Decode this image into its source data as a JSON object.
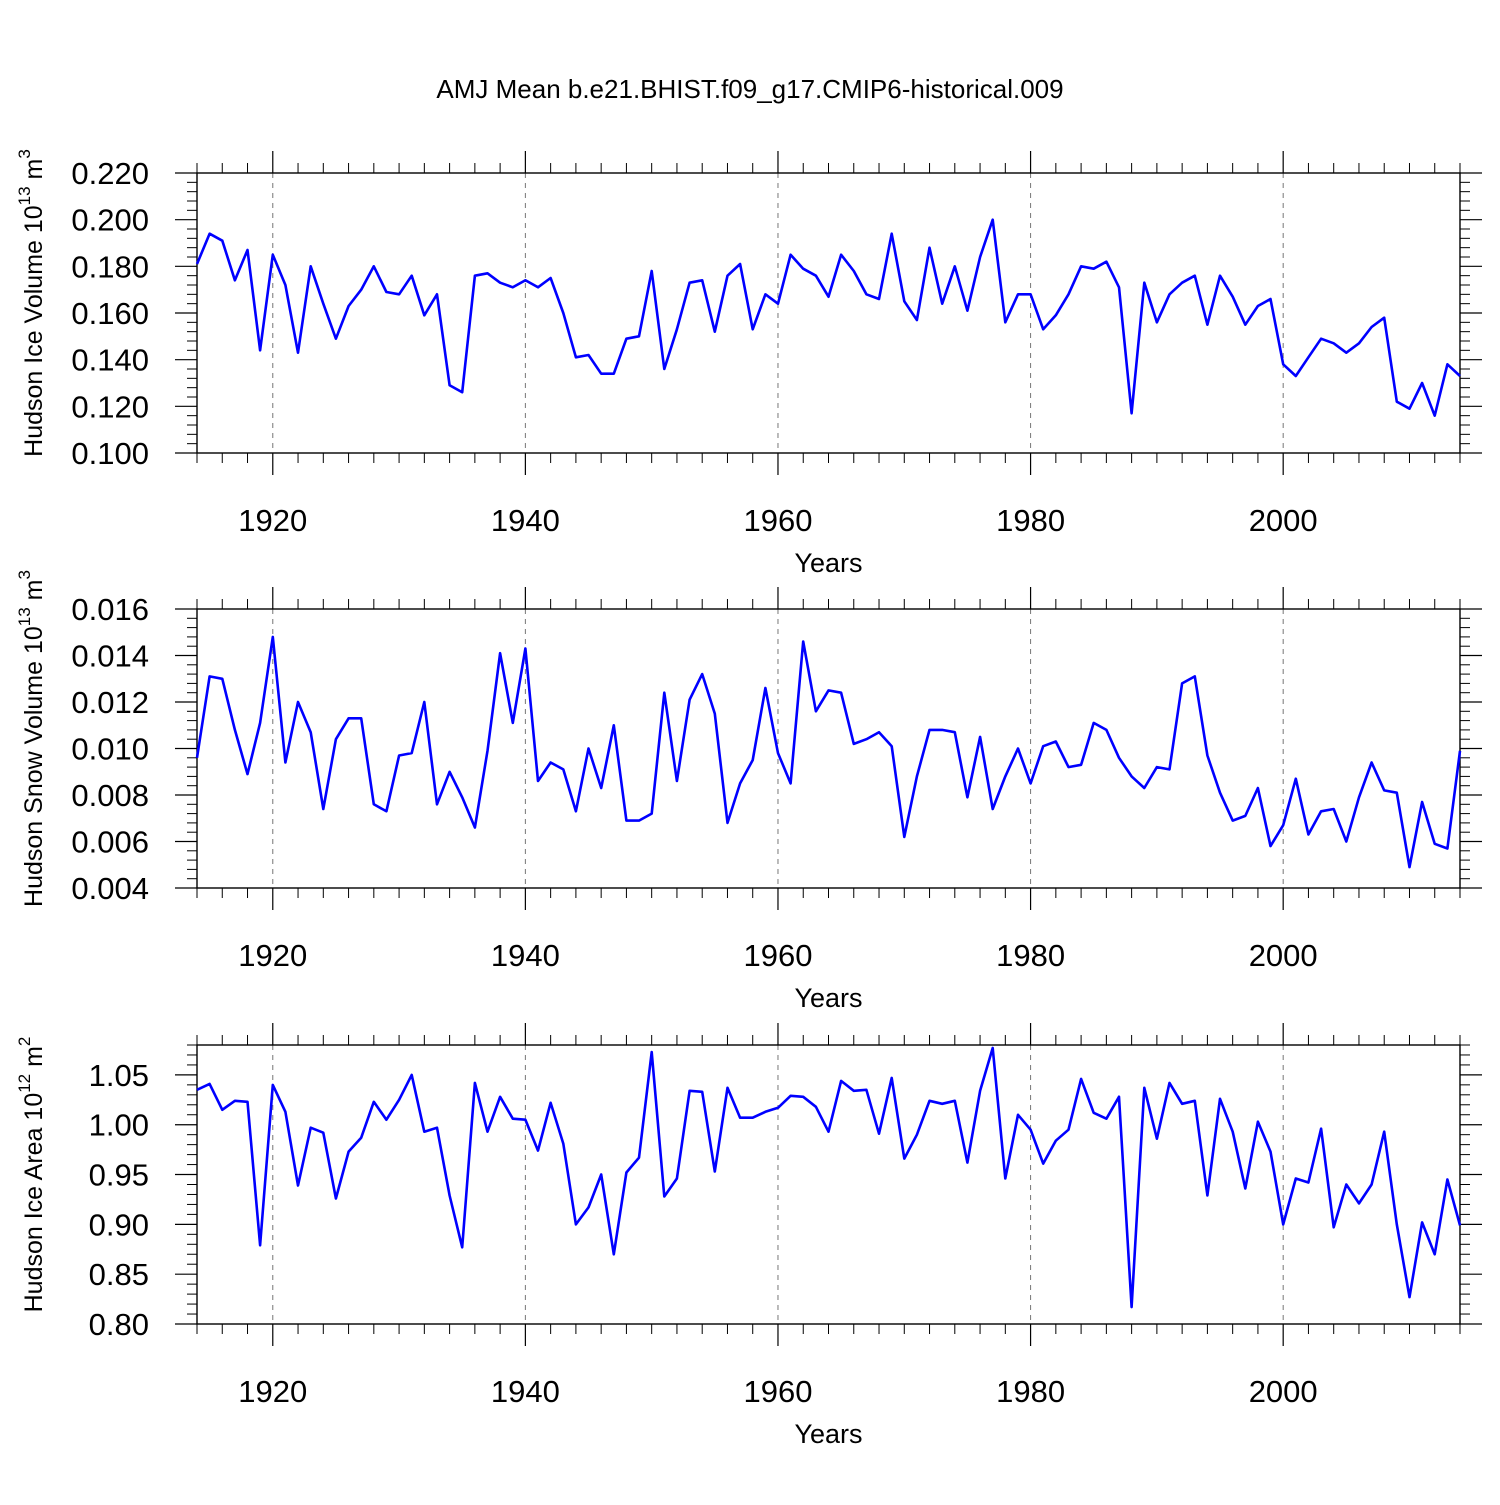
{
  "title": "AMJ Mean b.e21.BHIST.f09_g17.CMIP6-historical.009",
  "colors": {
    "line": "#0000ff",
    "axis": "#000000",
    "grid": "#777777"
  },
  "chart_data": [
    {
      "type": "line",
      "ylabel": "Hudson Ice Volume 10",
      "ylabel_exp": "13",
      "ylabel_unit": " m",
      "ylabel_unit_exp": "3",
      "xlabel": "Years",
      "xlim": [
        1914,
        2014
      ],
      "ylim": [
        0.1,
        0.22
      ],
      "yticks": [
        0.1,
        0.12,
        0.14,
        0.16,
        0.18,
        0.2,
        0.22
      ],
      "ytick_labels": [
        "0.100",
        "0.120",
        "0.140",
        "0.160",
        "0.180",
        "0.200",
        "0.220"
      ],
      "xticks": [
        1920,
        1940,
        1960,
        1980,
        2000
      ],
      "xtick_labels": [
        "1920",
        "1940",
        "1960",
        "1980",
        "2000"
      ],
      "series": [
        {
          "name": "Hudson Ice Volume",
          "x_start": 1914,
          "values": [
            0.181,
            0.194,
            0.191,
            0.174,
            0.187,
            0.144,
            0.185,
            0.172,
            0.143,
            0.18,
            0.164,
            0.149,
            0.163,
            0.17,
            0.18,
            0.169,
            0.168,
            0.176,
            0.159,
            0.168,
            0.129,
            0.126,
            0.176,
            0.177,
            0.173,
            0.171,
            0.174,
            0.171,
            0.175,
            0.16,
            0.141,
            0.142,
            0.134,
            0.134,
            0.149,
            0.15,
            0.178,
            0.136,
            0.153,
            0.173,
            0.174,
            0.152,
            0.176,
            0.181,
            0.153,
            0.168,
            0.164,
            0.185,
            0.179,
            0.176,
            0.167,
            0.185,
            0.178,
            0.168,
            0.166,
            0.194,
            0.165,
            0.157,
            0.188,
            0.164,
            0.18,
            0.161,
            0.184,
            0.2,
            0.156,
            0.168,
            0.168,
            0.153,
            0.159,
            0.168,
            0.18,
            0.179,
            0.182,
            0.171,
            0.117,
            0.173,
            0.156,
            0.168,
            0.173,
            0.176,
            0.155,
            0.176,
            0.167,
            0.155,
            0.163,
            0.166,
            0.138,
            0.133,
            0.141,
            0.149,
            0.147,
            0.143,
            0.147,
            0.154,
            0.158,
            0.122,
            0.119,
            0.13,
            0.116,
            0.138,
            0.133
          ]
        }
      ]
    },
    {
      "type": "line",
      "ylabel": "Hudson Snow Volume 10",
      "ylabel_exp": "13",
      "ylabel_unit": " m",
      "ylabel_unit_exp": "3",
      "xlabel": "Years",
      "xlim": [
        1914,
        2014
      ],
      "ylim": [
        0.004,
        0.016
      ],
      "yticks": [
        0.004,
        0.006,
        0.008,
        0.01,
        0.012,
        0.014,
        0.016
      ],
      "ytick_labels": [
        "0.004",
        "0.006",
        "0.008",
        "0.010",
        "0.012",
        "0.014",
        "0.016"
      ],
      "xticks": [
        1920,
        1940,
        1960,
        1980,
        2000
      ],
      "xtick_labels": [
        "1920",
        "1940",
        "1960",
        "1980",
        "2000"
      ],
      "series": [
        {
          "name": "Hudson Snow Volume",
          "x_start": 1914,
          "values": [
            0.0096,
            0.0131,
            0.013,
            0.0108,
            0.0089,
            0.0111,
            0.0148,
            0.0094,
            0.012,
            0.0107,
            0.0074,
            0.0104,
            0.0113,
            0.0113,
            0.0076,
            0.0073,
            0.0097,
            0.0098,
            0.012,
            0.0076,
            0.009,
            0.0079,
            0.0066,
            0.0099,
            0.0141,
            0.0111,
            0.0143,
            0.0086,
            0.0094,
            0.0091,
            0.0073,
            0.01,
            0.0083,
            0.011,
            0.0069,
            0.0069,
            0.0072,
            0.0124,
            0.0086,
            0.0121,
            0.0132,
            0.0115,
            0.0068,
            0.0085,
            0.0095,
            0.0126,
            0.0098,
            0.0085,
            0.0146,
            0.0116,
            0.0125,
            0.0124,
            0.0102,
            0.0104,
            0.0107,
            0.0101,
            0.0062,
            0.0088,
            0.0108,
            0.0108,
            0.0107,
            0.0079,
            0.0105,
            0.0074,
            0.0088,
            0.01,
            0.0085,
            0.0101,
            0.0103,
            0.0092,
            0.0093,
            0.0111,
            0.0108,
            0.0096,
            0.0088,
            0.0083,
            0.0092,
            0.0091,
            0.0128,
            0.0131,
            0.0097,
            0.0081,
            0.0069,
            0.0071,
            0.0083,
            0.0058,
            0.0067,
            0.0087,
            0.0063,
            0.0073,
            0.0074,
            0.006,
            0.0079,
            0.0094,
            0.0082,
            0.0081,
            0.0049,
            0.0077,
            0.0059,
            0.0057,
            0.0099
          ]
        }
      ]
    },
    {
      "type": "line",
      "ylabel": "Hudson Ice Area 10",
      "ylabel_exp": "12",
      "ylabel_unit": " m",
      "ylabel_unit_exp": "2",
      "xlabel": "Years",
      "xlim": [
        1914,
        2014
      ],
      "ylim": [
        0.8,
        1.08
      ],
      "yticks": [
        0.8,
        0.85,
        0.9,
        0.95,
        1.0,
        1.05
      ],
      "ytick_labels": [
        "0.80",
        "0.85",
        "0.90",
        "0.95",
        "1.00",
        "1.05"
      ],
      "xticks": [
        1920,
        1940,
        1960,
        1980,
        2000
      ],
      "xtick_labels": [
        "1920",
        "1940",
        "1960",
        "1980",
        "2000"
      ],
      "series": [
        {
          "name": "Hudson Ice Area",
          "x_start": 1914,
          "values": [
            1.035,
            1.041,
            1.015,
            1.024,
            1.023,
            0.879,
            1.04,
            1.013,
            0.939,
            0.997,
            0.992,
            0.926,
            0.973,
            0.987,
            1.023,
            1.005,
            1.025,
            1.05,
            0.993,
            0.997,
            0.929,
            0.877,
            1.042,
            0.993,
            1.028,
            1.006,
            1.005,
            0.974,
            1.022,
            0.981,
            0.9,
            0.917,
            0.95,
            0.87,
            0.952,
            0.967,
            1.073,
            0.928,
            0.946,
            1.034,
            1.033,
            0.953,
            1.037,
            1.007,
            1.007,
            1.013,
            1.017,
            1.029,
            1.028,
            1.018,
            0.993,
            1.044,
            1.034,
            1.035,
            0.991,
            1.047,
            0.966,
            0.99,
            1.024,
            1.021,
            1.024,
            0.962,
            1.034,
            1.077,
            0.946,
            1.01,
            0.995,
            0.961,
            0.984,
            0.995,
            1.046,
            1.012,
            1.006,
            1.028,
            0.817,
            1.037,
            0.986,
            1.042,
            1.021,
            1.024,
            0.929,
            1.026,
            0.993,
            0.936,
            1.003,
            0.973,
            0.9,
            0.946,
            0.942,
            0.996,
            0.897,
            0.94,
            0.921,
            0.94,
            0.993,
            0.9,
            0.827,
            0.902,
            0.87,
            0.945,
            0.899
          ]
        }
      ]
    }
  ]
}
